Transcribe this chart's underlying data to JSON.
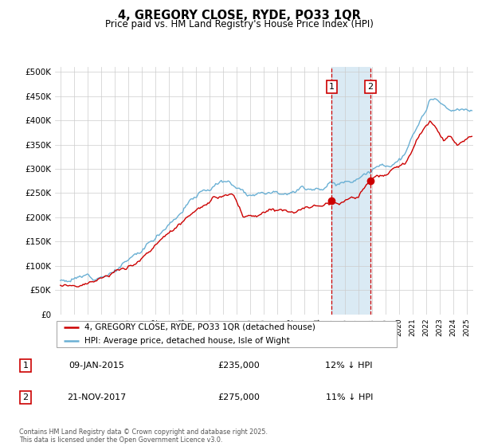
{
  "title": "4, GREGORY CLOSE, RYDE, PO33 1QR",
  "subtitle": "Price paid vs. HM Land Registry's House Price Index (HPI)",
  "legend_entry1": "4, GREGORY CLOSE, RYDE, PO33 1QR (detached house)",
  "legend_entry2": "HPI: Average price, detached house, Isle of Wight",
  "marker1_date": "09-JAN-2015",
  "marker1_price": 235000,
  "marker1_label": "12% ↓ HPI",
  "marker2_date": "21-NOV-2017",
  "marker2_price": 275000,
  "marker2_label": "11% ↓ HPI",
  "marker1_x": 2015.03,
  "marker2_x": 2017.9,
  "footer": "Contains HM Land Registry data © Crown copyright and database right 2025.\nThis data is licensed under the Open Government Licence v3.0.",
  "hpi_color": "#6ab0d4",
  "price_color": "#cc0000",
  "marker_color": "#cc0000",
  "shading_color": "#daeaf4",
  "ylim": [
    0,
    510000
  ],
  "xlim_start": 1994.6,
  "xlim_end": 2025.5,
  "yticks": [
    0,
    50000,
    100000,
    150000,
    200000,
    250000,
    300000,
    350000,
    400000,
    450000,
    500000
  ]
}
